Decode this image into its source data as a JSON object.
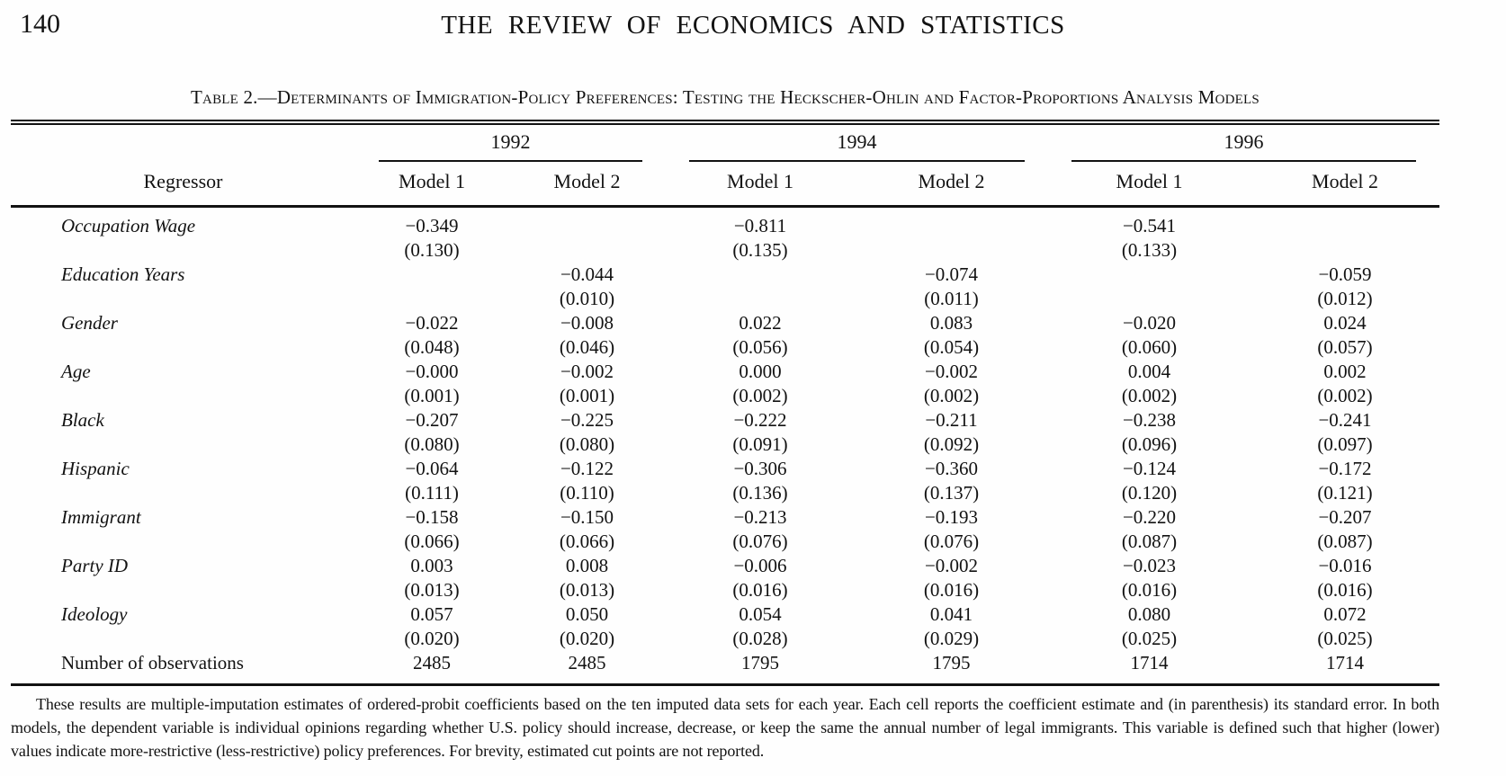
{
  "page": {
    "page_number": "140",
    "journal_title": "THE REVIEW OF ECONOMICS AND STATISTICS"
  },
  "table": {
    "title": "Table 2.—Determinants of Immigration-Policy Preferences: Testing the Heckscher-Ohlin and Factor-Proportions Analysis Models",
    "regressor_header": "Regressor",
    "year_groups": [
      "1992",
      "1994",
      "1996"
    ],
    "model_headers": [
      "Model 1",
      "Model 2",
      "Model 1",
      "Model 2",
      "Model 1",
      "Model 2"
    ],
    "rows": [
      {
        "label": "Occupation Wage",
        "cells": [
          {
            "coef": "−0.349",
            "se": "(0.130)"
          },
          {
            "coef": "",
            "se": ""
          },
          {
            "coef": "−0.811",
            "se": "(0.135)"
          },
          {
            "coef": "",
            "se": ""
          },
          {
            "coef": "−0.541",
            "se": "(0.133)"
          },
          {
            "coef": "",
            "se": ""
          }
        ]
      },
      {
        "label": "Education Years",
        "cells": [
          {
            "coef": "",
            "se": ""
          },
          {
            "coef": "−0.044",
            "se": "(0.010)"
          },
          {
            "coef": "",
            "se": ""
          },
          {
            "coef": "−0.074",
            "se": "(0.011)"
          },
          {
            "coef": "",
            "se": ""
          },
          {
            "coef": "−0.059",
            "se": "(0.012)"
          }
        ]
      },
      {
        "label": "Gender",
        "cells": [
          {
            "coef": "−0.022",
            "se": "(0.048)"
          },
          {
            "coef": "−0.008",
            "se": "(0.046)"
          },
          {
            "coef": "0.022",
            "se": "(0.056)"
          },
          {
            "coef": "0.083",
            "se": "(0.054)"
          },
          {
            "coef": "−0.020",
            "se": "(0.060)"
          },
          {
            "coef": "0.024",
            "se": "(0.057)"
          }
        ]
      },
      {
        "label": "Age",
        "cells": [
          {
            "coef": "−0.000",
            "se": "(0.001)"
          },
          {
            "coef": "−0.002",
            "se": "(0.001)"
          },
          {
            "coef": "0.000",
            "se": "(0.002)"
          },
          {
            "coef": "−0.002",
            "se": "(0.002)"
          },
          {
            "coef": "0.004",
            "se": "(0.002)"
          },
          {
            "coef": "0.002",
            "se": "(0.002)"
          }
        ]
      },
      {
        "label": "Black",
        "cells": [
          {
            "coef": "−0.207",
            "se": "(0.080)"
          },
          {
            "coef": "−0.225",
            "se": "(0.080)"
          },
          {
            "coef": "−0.222",
            "se": "(0.091)"
          },
          {
            "coef": "−0.211",
            "se": "(0.092)"
          },
          {
            "coef": "−0.238",
            "se": "(0.096)"
          },
          {
            "coef": "−0.241",
            "se": "(0.097)"
          }
        ]
      },
      {
        "label": "Hispanic",
        "cells": [
          {
            "coef": "−0.064",
            "se": "(0.111)"
          },
          {
            "coef": "−0.122",
            "se": "(0.110)"
          },
          {
            "coef": "−0.306",
            "se": "(0.136)"
          },
          {
            "coef": "−0.360",
            "se": "(0.137)"
          },
          {
            "coef": "−0.124",
            "se": "(0.120)"
          },
          {
            "coef": "−0.172",
            "se": "(0.121)"
          }
        ]
      },
      {
        "label": "Immigrant",
        "cells": [
          {
            "coef": "−0.158",
            "se": "(0.066)"
          },
          {
            "coef": "−0.150",
            "se": "(0.066)"
          },
          {
            "coef": "−0.213",
            "se": "(0.076)"
          },
          {
            "coef": "−0.193",
            "se": "(0.076)"
          },
          {
            "coef": "−0.220",
            "se": "(0.087)"
          },
          {
            "coef": "−0.207",
            "se": "(0.087)"
          }
        ]
      },
      {
        "label": "Party ID",
        "cells": [
          {
            "coef": "0.003",
            "se": "(0.013)"
          },
          {
            "coef": "0.008",
            "se": "(0.013)"
          },
          {
            "coef": "−0.006",
            "se": "(0.016)"
          },
          {
            "coef": "−0.002",
            "se": "(0.016)"
          },
          {
            "coef": "−0.023",
            "se": "(0.016)"
          },
          {
            "coef": "−0.016",
            "se": "(0.016)"
          }
        ]
      },
      {
        "label": "Ideology",
        "cells": [
          {
            "coef": "0.057",
            "se": "(0.020)"
          },
          {
            "coef": "0.050",
            "se": "(0.020)"
          },
          {
            "coef": "0.054",
            "se": "(0.028)"
          },
          {
            "coef": "0.041",
            "se": "(0.029)"
          },
          {
            "coef": "0.080",
            "se": "(0.025)"
          },
          {
            "coef": "0.072",
            "se": "(0.025)"
          }
        ]
      }
    ],
    "obs_row": {
      "label": "Number of observations",
      "values": [
        "2485",
        "2485",
        "1795",
        "1795",
        "1714",
        "1714"
      ]
    },
    "note": "These results are multiple-imputation estimates of ordered-probit coefficients based on the ten imputed data sets for each year. Each cell reports the coefficient estimate and (in parenthesis) its standard error. In both models, the dependent variable is individual opinions regarding whether U.S. policy should increase, decrease, or keep the same the annual number of legal immigrants. This variable is defined such that higher (lower) values indicate more-restrictive (less-restrictive) policy preferences. For brevity, estimated cut points are not reported."
  }
}
